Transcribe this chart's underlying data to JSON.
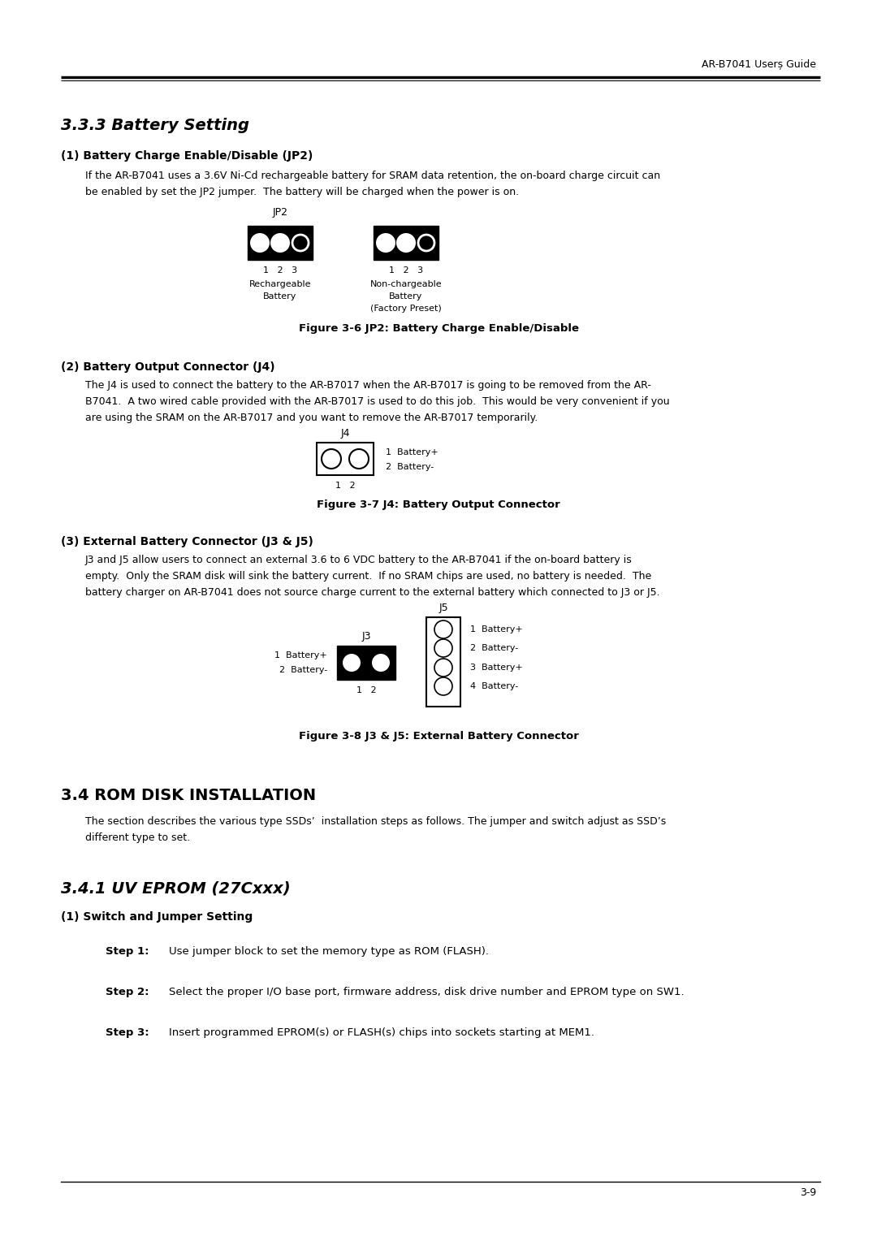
{
  "header_text": "AR-B7041 Userș Guide",
  "footer_text": "3-9",
  "title_333": "3.3.3 Battery Setting",
  "section1_heading": "(1) Battery Charge Enable/Disable (JP2)",
  "section1_body_l1": "If the AR-B7041 uses a 3.6V Ni-Cd rechargeable battery for SRAM data retention, the on-board charge circuit can",
  "section1_body_l2": "be enabled by set the JP2 jumper.  The battery will be charged when the power is on.",
  "jp2_label": "JP2",
  "fig1_left_label123": "1   2   3",
  "fig1_right_label123": "1   2   3",
  "fig1_left_text1": "Rechargeable",
  "fig1_left_text2": "Battery",
  "fig1_right_text1": "Non-chargeable",
  "fig1_right_text2": "Battery",
  "fig1_right_text3": "(Factory Preset)",
  "fig1_caption": "Figure 3-6 JP2: Battery Charge Enable/Disable",
  "section2_heading": "(2) Battery Output Connector (J4)",
  "section2_body_l1": "The J4 is used to connect the battery to the AR-B7017 when the AR-B7017 is going to be removed from the AR-",
  "section2_body_l2": "B7041.  A two wired cable provided with the AR-B7017 is used to do this job.  This would be very convenient if you",
  "section2_body_l3": "are using the SRAM on the AR-B7017 and you want to remove the AR-B7017 temporarily.",
  "j4_label": "J4",
  "fig2_label12": "1   2",
  "fig2_text1": "1  Battery+",
  "fig2_text2": "2  Battery-",
  "fig2_caption": "Figure 3-7 J4: Battery Output Connector",
  "section3_heading": "(3) External Battery Connector (J3 & J5)",
  "section3_body_l1": "J3 and J5 allow users to connect an external 3.6 to 6 VDC battery to the AR-B7041 if the on-board battery is",
  "section3_body_l2": "empty.  Only the SRAM disk will sink the battery current.  If no SRAM chips are used, no battery is needed.  The",
  "section3_body_l3": "battery charger on AR-B7041 does not source charge current to the external battery which connected to J3 or J5.",
  "j3_label": "J3",
  "j5_label": "J5",
  "fig3_j3_label12": "1   2",
  "fig3_j3_left1": "1  Battery+",
  "fig3_j3_left2": "2  Battery-",
  "fig3_j5_text1": "1  Battery+",
  "fig3_j5_text2": "2  Battery-",
  "fig3_j5_text3": "3  Battery+",
  "fig3_j5_text4": "4  Battery-",
  "fig3_caption": "Figure 3-8 J3 & J5: External Battery Connector",
  "section4_heading": "3.4 ROM DISK INSTALLATION",
  "section4_body_l1": "The section describes the various type SSDs’  installation steps as follows. The jumper and switch adjust as SSD’s",
  "section4_body_l2": "different type to set.",
  "section5_heading": "3.4.1 UV EPROM (27Cxxx)",
  "section5_sub": "(1) Switch and Jumper Setting",
  "step1_bold": "Step 1:",
  "step1_text": "  Use jumper block to set the memory type as ROM (FLASH).",
  "step2_bold": "Step 2:",
  "step2_text": "  Select the proper I/O base port, firmware address, disk drive number and EPROM type on SW1.",
  "step3_bold": "Step 3:",
  "step3_text": "  Insert programmed EPROM(s) or FLASH(s) chips into sockets starting at MEM1.",
  "bg_color": "#ffffff",
  "text_color": "#000000"
}
